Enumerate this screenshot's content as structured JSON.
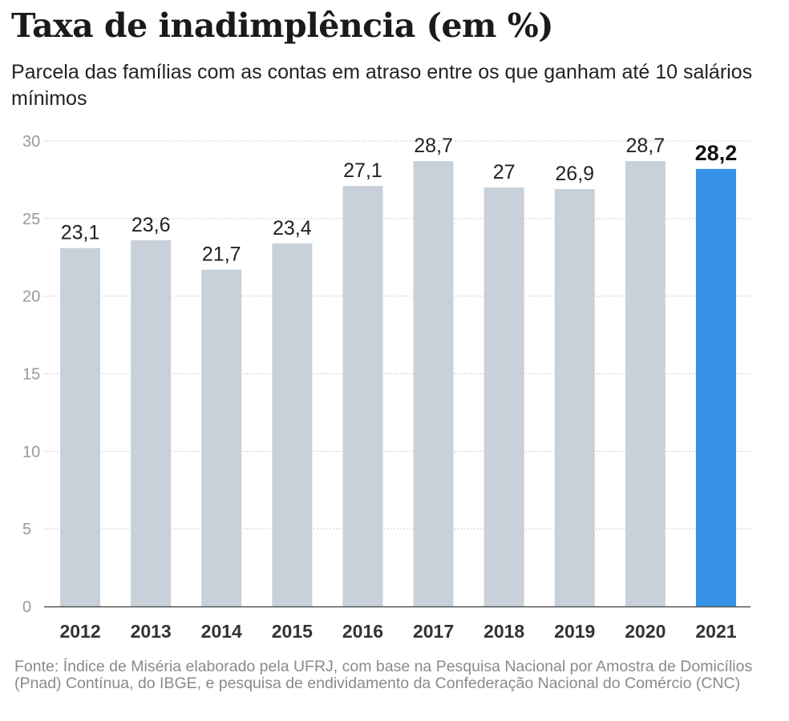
{
  "header": {
    "title": "Taxa de inadimplência (em %)",
    "subtitle": "Parcela das famílias com as contas em atraso entre os que ganham até 10 salários mínimos"
  },
  "footer": {
    "source": "Fonte: Índice de Miséria elaborado pela UFRJ, com base na Pesquisa Nacional por Amostra de Domicílios (Pnad) Contínua, do IBGE, e pesquisa de endividamento da Confederação Nacional do Comércio (CNC)"
  },
  "chart_data": {
    "type": "bar",
    "title": "Taxa de inadimplência (em %)",
    "subtitle": "Parcela das famílias com as contas em atraso entre os que ganham até 10 salários mínimos",
    "categories": [
      "2012",
      "2013",
      "2014",
      "2015",
      "2016",
      "2017",
      "2018",
      "2019",
      "2020",
      "2021"
    ],
    "values": [
      23.1,
      23.6,
      21.7,
      23.4,
      27.1,
      28.7,
      27,
      26.9,
      28.7,
      28.2
    ],
    "value_labels": [
      "23,1",
      "23,6",
      "21,7",
      "23,4",
      "27,1",
      "28,7",
      "27",
      "26,9",
      "28,7",
      "28,2"
    ],
    "highlight_index": 9,
    "ylim": [
      0,
      30
    ],
    "yticks": [
      0,
      5,
      10,
      15,
      20,
      25,
      30
    ],
    "grid": true,
    "xlabel": "",
    "ylabel": "",
    "colors": {
      "bar": "#c8d1d9",
      "highlight": "#3592e6",
      "grid": "#bdbdbd",
      "axis": "#555555"
    }
  }
}
